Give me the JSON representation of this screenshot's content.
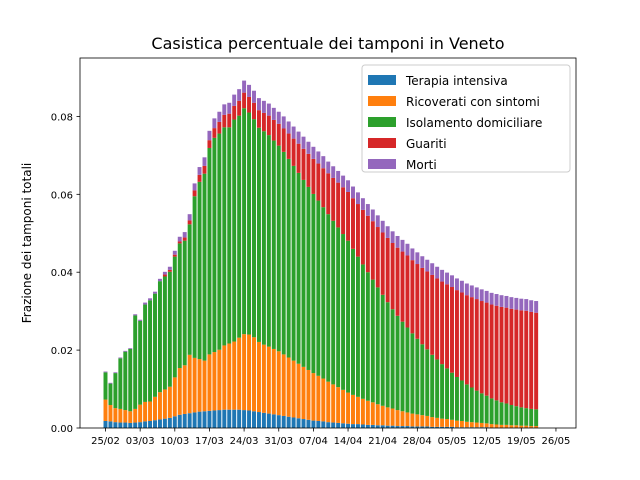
{
  "chart_data": {
    "type": "bar",
    "stacked": true,
    "title": "Casistica percentuale dei tamponi in Veneto",
    "xlabel": "",
    "ylabel": "Frazione dei tamponi totali",
    "ylim": [
      0,
      0.095
    ],
    "yticks": [
      0.0,
      0.02,
      0.04,
      0.06,
      0.08
    ],
    "ytick_labels": [
      "0.00",
      "0.02",
      "0.04",
      "0.06",
      "0.08"
    ],
    "xticks": [
      {
        "label": "25/02",
        "index": 0
      },
      {
        "label": "03/03",
        "index": 7
      },
      {
        "label": "10/03",
        "index": 14
      },
      {
        "label": "17/03",
        "index": 21
      },
      {
        "label": "24/03",
        "index": 28
      },
      {
        "label": "31/03",
        "index": 35
      },
      {
        "label": "07/04",
        "index": 42
      },
      {
        "label": "14/04",
        "index": 49
      },
      {
        "label": "21/04",
        "index": 56
      },
      {
        "label": "28/04",
        "index": 63
      },
      {
        "label": "05/05",
        "index": 70
      },
      {
        "label": "12/05",
        "index": 77
      },
      {
        "label": "19/05",
        "index": 84
      },
      {
        "label": "26/05",
        "index": 91
      }
    ],
    "grid": false,
    "legend_position": "top-right",
    "series": [
      {
        "name": "Terapia intensiva",
        "color": "#1f77b4",
        "values": [
          0.0018,
          0.0017,
          0.0015,
          0.0014,
          0.0014,
          0.0013,
          0.0014,
          0.0015,
          0.0017,
          0.0018,
          0.002,
          0.0022,
          0.0024,
          0.0026,
          0.003,
          0.0034,
          0.0036,
          0.0038,
          0.004,
          0.0042,
          0.0043,
          0.0044,
          0.0045,
          0.0046,
          0.0047,
          0.0047,
          0.0047,
          0.0047,
          0.0046,
          0.0045,
          0.0043,
          0.0041,
          0.0039,
          0.0037,
          0.0035,
          0.0033,
          0.0031,
          0.0029,
          0.0027,
          0.0025,
          0.0023,
          0.0021,
          0.0019,
          0.0018,
          0.0017,
          0.0015,
          0.0014,
          0.0013,
          0.0012,
          0.0011,
          0.001,
          0.001,
          0.0009,
          0.0008,
          0.0008,
          0.0007,
          0.0007,
          0.0006,
          0.0006,
          0.0005,
          0.0005,
          0.0005,
          0.0004,
          0.0004,
          0.0004,
          0.0004,
          0.0003,
          0.0003,
          0.0003,
          0.0003,
          0.0003,
          0.0002,
          0.0002,
          0.0002,
          0.0002,
          0.0002,
          0.0002,
          0.0002,
          0.0001,
          0.0001,
          0.0001,
          0.0001,
          0.0001,
          0.0001,
          0.0001,
          0.0001,
          0.0001,
          0.0001
        ]
      },
      {
        "name": "Ricoverati con sintomi",
        "color": "#ff7f0e",
        "values": [
          0.0055,
          0.0042,
          0.0036,
          0.0035,
          0.0032,
          0.003,
          0.0035,
          0.0045,
          0.005,
          0.005,
          0.006,
          0.007,
          0.0075,
          0.008,
          0.01,
          0.012,
          0.0125,
          0.015,
          0.014,
          0.0135,
          0.013,
          0.0145,
          0.015,
          0.0155,
          0.0165,
          0.017,
          0.0175,
          0.0185,
          0.0195,
          0.0195,
          0.019,
          0.018,
          0.0175,
          0.0172,
          0.0168,
          0.0164,
          0.0158,
          0.0152,
          0.0146,
          0.014,
          0.0134,
          0.0128,
          0.0122,
          0.0116,
          0.011,
          0.0104,
          0.0098,
          0.0092,
          0.0086,
          0.008,
          0.0075,
          0.007,
          0.0066,
          0.0062,
          0.0058,
          0.0054,
          0.005,
          0.0047,
          0.0044,
          0.0041,
          0.0038,
          0.0035,
          0.0033,
          0.0031,
          0.0029,
          0.0027,
          0.0025,
          0.0023,
          0.0021,
          0.002,
          0.0018,
          0.0017,
          0.0016,
          0.0014,
          0.0013,
          0.0012,
          0.0011,
          0.001,
          0.0009,
          0.0008,
          0.0007,
          0.0007,
          0.0006,
          0.0006,
          0.0005,
          0.0005,
          0.0004,
          0.0004
        ]
      },
      {
        "name": "Isolamento domiciliare",
        "color": "#2ca02c",
        "values": [
          0.007,
          0.0055,
          0.009,
          0.013,
          0.015,
          0.016,
          0.024,
          0.0215,
          0.025,
          0.026,
          0.0265,
          0.0285,
          0.029,
          0.0295,
          0.031,
          0.032,
          0.032,
          0.0335,
          0.0415,
          0.0455,
          0.048,
          0.053,
          0.055,
          0.0555,
          0.056,
          0.0555,
          0.057,
          0.057,
          0.058,
          0.057,
          0.056,
          0.055,
          0.0548,
          0.0543,
          0.0535,
          0.0528,
          0.052,
          0.051,
          0.05,
          0.049,
          0.048,
          0.047,
          0.046,
          0.045,
          0.044,
          0.043,
          0.042,
          0.041,
          0.04,
          0.039,
          0.0375,
          0.036,
          0.0345,
          0.033,
          0.0315,
          0.03,
          0.0285,
          0.027,
          0.0255,
          0.0242,
          0.023,
          0.0218,
          0.0206,
          0.0194,
          0.0182,
          0.0171,
          0.016,
          0.015,
          0.014,
          0.013,
          0.0121,
          0.0112,
          0.0104,
          0.0096,
          0.0089,
          0.0082,
          0.0076,
          0.0071,
          0.0066,
          0.0062,
          0.0058,
          0.0055,
          0.0052,
          0.0049,
          0.0047,
          0.0045,
          0.0044,
          0.0043
        ]
      },
      {
        "name": "Guariti",
        "color": "#d62728",
        "values": [
          0,
          0,
          0,
          0,
          0,
          0,
          0,
          0,
          0,
          0,
          0,
          0,
          0.0005,
          0.0005,
          0.0005,
          0.0005,
          0.0008,
          0.001,
          0.0015,
          0.0018,
          0.002,
          0.002,
          0.0025,
          0.003,
          0.0032,
          0.0035,
          0.0035,
          0.0038,
          0.004,
          0.004,
          0.0042,
          0.0045,
          0.0047,
          0.005,
          0.0053,
          0.0056,
          0.006,
          0.0065,
          0.007,
          0.0075,
          0.008,
          0.0085,
          0.009,
          0.0095,
          0.01,
          0.0105,
          0.011,
          0.0115,
          0.012,
          0.0125,
          0.013,
          0.0135,
          0.014,
          0.0145,
          0.015,
          0.0155,
          0.016,
          0.0165,
          0.017,
          0.0175,
          0.018,
          0.0185,
          0.0188,
          0.0192,
          0.0196,
          0.02,
          0.0205,
          0.0208,
          0.0212,
          0.0216,
          0.022,
          0.0223,
          0.0226,
          0.0229,
          0.0232,
          0.0235,
          0.0237,
          0.0239,
          0.0241,
          0.0243,
          0.0245,
          0.0246,
          0.0247,
          0.0248,
          0.0249,
          0.025,
          0.0249,
          0.0248
        ]
      },
      {
        "name": "Morti",
        "color": "#9467bd",
        "values": [
          0.0002,
          0.0002,
          0.0002,
          0.0002,
          0.0002,
          0.0002,
          0.0003,
          0.0003,
          0.0005,
          0.0005,
          0.0005,
          0.0006,
          0.0007,
          0.0008,
          0.001,
          0.0012,
          0.0014,
          0.0016,
          0.0018,
          0.002,
          0.0022,
          0.0024,
          0.0025,
          0.0026,
          0.0027,
          0.0028,
          0.0029,
          0.003,
          0.0031,
          0.0031,
          0.0031,
          0.0031,
          0.0031,
          0.0031,
          0.0031,
          0.0031,
          0.0031,
          0.0031,
          0.0031,
          0.0031,
          0.0031,
          0.0031,
          0.0031,
          0.0031,
          0.0031,
          0.003,
          0.003,
          0.003,
          0.003,
          0.003,
          0.003,
          0.003,
          0.003,
          0.003,
          0.003,
          0.003,
          0.003,
          0.003,
          0.003,
          0.003,
          0.003,
          0.003,
          0.003,
          0.003,
          0.003,
          0.003,
          0.003,
          0.003,
          0.003,
          0.003,
          0.003,
          0.003,
          0.003,
          0.003,
          0.003,
          0.003,
          0.003,
          0.003,
          0.003,
          0.003,
          0.003,
          0.003,
          0.003,
          0.003,
          0.003,
          0.003,
          0.003,
          0.003
        ]
      }
    ]
  }
}
